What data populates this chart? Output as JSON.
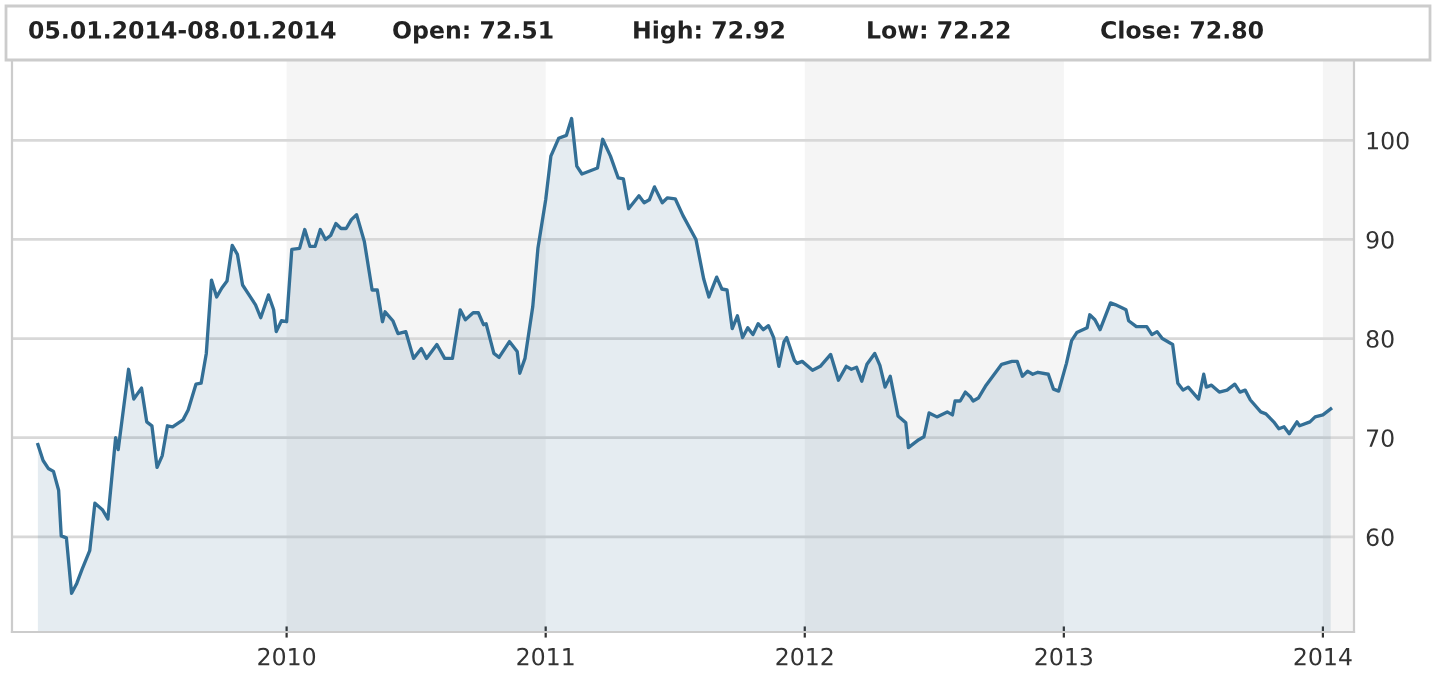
{
  "chart_data": {
    "type": "area",
    "annotations": [
      "05.01.2014-08.01.2014",
      "Open: 72.51",
      "High: 72.92",
      "Low: 72.22",
      "Close: 72.80"
    ],
    "series": [
      {
        "color": "#336f96",
        "x": [
          2009.04,
          2009.06,
          2009.08,
          2009.1,
          2009.12,
          2009.13,
          2009.15,
          2009.17,
          2009.19,
          2009.21,
          2009.24,
          2009.26,
          2009.29,
          2009.31,
          2009.34,
          2009.35,
          2009.39,
          2009.41,
          2009.44,
          2009.46,
          2009.48,
          2009.5,
          2009.52,
          2009.54,
          2009.56,
          2009.6,
          2009.62,
          2009.65,
          2009.67,
          2009.69,
          2009.71,
          2009.73,
          2009.75,
          2009.77,
          2009.79,
          2009.81,
          2009.83,
          2009.86,
          2009.88,
          2009.9,
          2009.93,
          2009.95,
          2009.96,
          2009.98,
          2010.0,
          2010.02,
          2010.05,
          2010.07,
          2010.09,
          2010.11,
          2010.13,
          2010.15,
          2010.17,
          2010.19,
          2010.21,
          2010.23,
          2010.25,
          2010.27,
          2010.3,
          2010.33,
          2010.35,
          2010.37,
          2010.38,
          2010.41,
          2010.43,
          2010.46,
          2010.49,
          2010.52,
          2010.54,
          2010.58,
          2010.61,
          2010.64,
          2010.67,
          2010.69,
          2010.72,
          2010.74,
          2010.76,
          2010.77,
          2010.8,
          2010.82,
          2010.86,
          2010.89,
          2010.9,
          2010.92,
          2010.95,
          2010.97,
          2011.0,
          2011.02,
          2011.05,
          2011.08,
          2011.1,
          2011.12,
          2011.14,
          2011.2,
          2011.22,
          2011.25,
          2011.28,
          2011.3,
          2011.32,
          2011.36,
          2011.38,
          2011.4,
          2011.42,
          2011.45,
          2011.47,
          2011.5,
          2011.53,
          2011.58,
          2011.61,
          2011.63,
          2011.66,
          2011.68,
          2011.7,
          2011.72,
          2011.74,
          2011.76,
          2011.78,
          2011.8,
          2011.82,
          2011.84,
          2011.86,
          2011.88,
          2011.9,
          2011.92,
          2011.93,
          2011.96,
          2011.97,
          2011.99,
          2012.03,
          2012.06,
          2012.1,
          2012.13,
          2012.16,
          2012.18,
          2012.2,
          2012.22,
          2012.24,
          2012.27,
          2012.29,
          2012.31,
          2012.33,
          2012.36,
          2012.39,
          2012.4,
          2012.44,
          2012.46,
          2012.48,
          2012.51,
          2012.55,
          2012.57,
          2012.58,
          2012.6,
          2012.62,
          2012.64,
          2012.65,
          2012.67,
          2012.7,
          2012.76,
          2012.8,
          2012.82,
          2012.84,
          2012.86,
          2012.88,
          2012.9,
          2012.94,
          2012.96,
          2012.98,
          2013.01,
          2013.03,
          2013.05,
          2013.09,
          2013.1,
          2013.12,
          2013.14,
          2013.18,
          2013.2,
          2013.24,
          2013.25,
          2013.28,
          2013.32,
          2013.34,
          2013.36,
          2013.38,
          2013.42,
          2013.44,
          2013.46,
          2013.48,
          2013.52,
          2013.54,
          2013.55,
          2013.57,
          2013.6,
          2013.63,
          2013.66,
          2013.68,
          2013.7,
          2013.72,
          2013.76,
          2013.78,
          2013.81,
          2013.83,
          2013.85,
          2013.87,
          2013.9,
          2013.91,
          2013.95,
          2013.97,
          2014.0,
          2014.03
        ],
        "values": [
          69.3,
          67.7,
          66.9,
          66.6,
          64.7,
          60.1,
          59.9,
          54.3,
          55.3,
          56.7,
          58.6,
          63.4,
          62.7,
          61.8,
          70.0,
          68.8,
          76.9,
          73.9,
          75.0,
          71.6,
          71.2,
          67.0,
          68.2,
          71.2,
          71.1,
          71.8,
          72.8,
          75.4,
          75.5,
          78.5,
          85.9,
          84.2,
          85.1,
          85.8,
          89.4,
          88.5,
          85.4,
          84.2,
          83.4,
          82.1,
          84.4,
          82.9,
          80.7,
          81.8,
          81.7,
          89.0,
          89.1,
          91.0,
          89.3,
          89.3,
          91.0,
          90.0,
          90.4,
          91.6,
          91.1,
          91.1,
          92.0,
          92.5,
          89.8,
          84.9,
          84.9,
          81.7,
          82.7,
          81.8,
          80.5,
          80.7,
          78.0,
          79.0,
          78.0,
          79.4,
          78.0,
          78.0,
          82.9,
          81.9,
          82.6,
          82.6,
          81.4,
          81.5,
          78.5,
          78.1,
          79.7,
          78.7,
          76.5,
          78.0,
          83.2,
          89.1,
          94.0,
          98.4,
          100.2,
          100.5,
          102.2,
          97.4,
          96.6,
          97.2,
          100.1,
          98.4,
          96.2,
          96.1,
          93.1,
          94.4,
          93.7,
          94.0,
          95.3,
          93.7,
          94.2,
          94.1,
          92.4,
          90.0,
          86.0,
          84.2,
          86.2,
          85.0,
          84.9,
          81.0,
          82.3,
          80.1,
          81.1,
          80.4,
          81.5,
          80.9,
          81.3,
          80.1,
          77.2,
          79.7,
          80.1,
          77.8,
          77.5,
          77.7,
          76.8,
          77.2,
          78.4,
          75.8,
          77.2,
          76.9,
          77.1,
          75.7,
          77.4,
          78.5,
          77.3,
          75.1,
          76.2,
          72.2,
          71.5,
          69.0,
          69.8,
          70.1,
          72.5,
          72.1,
          72.6,
          72.3,
          73.7,
          73.7,
          74.6,
          74.1,
          73.7,
          74.0,
          75.3,
          77.4,
          77.7,
          77.7,
          76.2,
          76.7,
          76.4,
          76.6,
          76.4,
          74.9,
          74.7,
          77.5,
          79.8,
          80.6,
          81.1,
          82.4,
          81.9,
          80.9,
          83.6,
          83.4,
          82.9,
          81.8,
          81.2,
          81.2,
          80.4,
          80.7,
          80.0,
          79.4,
          75.5,
          74.8,
          75.1,
          73.9,
          76.4,
          75.1,
          75.3,
          74.6,
          74.8,
          75.4,
          74.6,
          74.8,
          73.8,
          72.6,
          72.4,
          71.6,
          70.9,
          71.1,
          70.4,
          71.6,
          71.2,
          71.6,
          72.1,
          72.3,
          72.9
        ]
      }
    ],
    "xlim": [
      2008.94,
      2014.12
    ],
    "xticks": [
      2010,
      2011,
      2012,
      2013,
      2014
    ],
    "ylim": [
      50.4,
      108.1
    ],
    "yticks": [
      60,
      70,
      80,
      90,
      100
    ],
    "grid": "y",
    "bands": [
      {
        "axis": "x",
        "from": 2010,
        "to": 2011,
        "color": "#f5f5f5"
      },
      {
        "axis": "x",
        "from": 2012,
        "to": 2013,
        "color": "#f5f5f5"
      },
      {
        "axis": "x",
        "from": 2014,
        "to": 2014.12,
        "color": "#f5f5f5"
      }
    ]
  }
}
